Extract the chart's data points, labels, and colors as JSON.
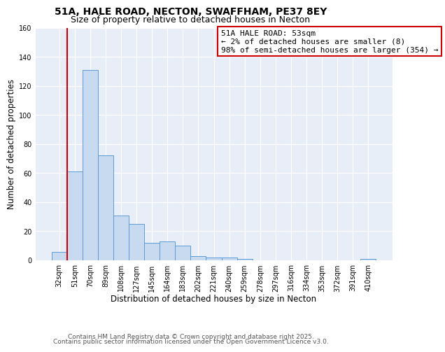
{
  "title": "51A, HALE ROAD, NECTON, SWAFFHAM, PE37 8EY",
  "subtitle": "Size of property relative to detached houses in Necton",
  "xlabel": "Distribution of detached houses by size in Necton",
  "ylabel": "Number of detached properties",
  "categories": [
    "32sqm",
    "51sqm",
    "70sqm",
    "89sqm",
    "108sqm",
    "127sqm",
    "145sqm",
    "164sqm",
    "183sqm",
    "202sqm",
    "221sqm",
    "240sqm",
    "259sqm",
    "278sqm",
    "297sqm",
    "316sqm",
    "334sqm",
    "353sqm",
    "372sqm",
    "391sqm",
    "410sqm"
  ],
  "values": [
    6,
    61,
    131,
    72,
    31,
    25,
    12,
    13,
    10,
    3,
    2,
    2,
    1,
    0,
    0,
    0,
    0,
    0,
    0,
    0,
    1
  ],
  "bar_color": "#c8daf0",
  "bar_edge_color": "#5b9bd5",
  "vline_color": "#cc0000",
  "annotation_text": "51A HALE ROAD: 53sqm\n← 2% of detached houses are smaller (8)\n98% of semi-detached houses are larger (354) →",
  "annotation_box_facecolor": "#ffffff",
  "annotation_box_edgecolor": "#cc0000",
  "ylim": [
    0,
    160
  ],
  "yticks": [
    0,
    20,
    40,
    60,
    80,
    100,
    120,
    140,
    160
  ],
  "fig_bg_color": "#ffffff",
  "plot_bg_color": "#e8eef8",
  "footer_line1": "Contains HM Land Registry data © Crown copyright and database right 2025.",
  "footer_line2": "Contains public sector information licensed under the Open Government Licence v3.0.",
  "title_fontsize": 10,
  "subtitle_fontsize": 9,
  "axis_label_fontsize": 8.5,
  "tick_fontsize": 7,
  "annotation_fontsize": 8,
  "footer_fontsize": 6.5,
  "grid_color": "#ffffff",
  "vline_x_index": 1
}
